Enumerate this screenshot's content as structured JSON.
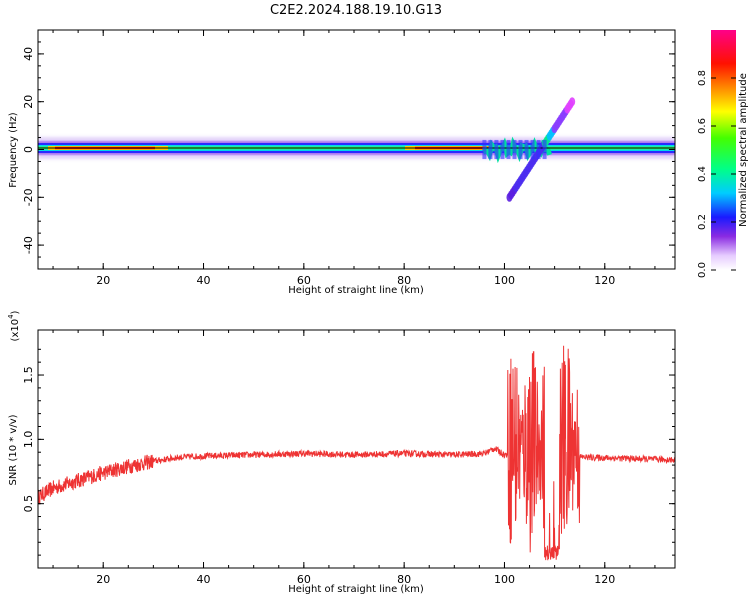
{
  "figure": {
    "title": "C2E2.2024.188.19.10.G13"
  },
  "chart_data": [
    {
      "type": "heatmap",
      "xlabel": "Height of straight line (km)",
      "ylabel": "Frequency (Hz)",
      "xlim": [
        7,
        134
      ],
      "ylim": [
        -50,
        50
      ],
      "xticks": [
        20,
        40,
        60,
        80,
        100,
        120
      ],
      "yticks": [
        40,
        20,
        0,
        -20,
        -40
      ],
      "xtick_labels": [
        "20",
        "40",
        "60",
        "80",
        "100",
        "120"
      ],
      "ytick_labels": [
        "40",
        "20",
        "0",
        "-20",
        "-40"
      ],
      "colorbar": {
        "label": "Normalized spectral amplitude",
        "range": [
          0,
          1
        ],
        "ticks": [
          0.0,
          0.2,
          0.4,
          0.6,
          0.8
        ],
        "tick_labels": [
          "0.0",
          "0.2",
          "0.4",
          "0.6",
          "0.8"
        ],
        "colormap": "rainbow (white, violet, blue, cyan, green, yellow, red, magenta)"
      },
      "features": [
        {
          "name": "carrier",
          "x_range": [
            7,
            134
          ],
          "frequency": 0,
          "amplitude_profile": "high (red) 10-30 km and 82-97 km, cyan/green elsewhere"
        },
        {
          "name": "doppler-streak",
          "x_range": [
            101,
            113.5
          ],
          "frequency_range": [
            -20,
            20
          ],
          "amplitude_profile": "blue at low end to magenta at top"
        },
        {
          "name": "disturbed-carrier",
          "x_range": [
            96,
            109
          ],
          "frequency_range": [
            -3,
            3
          ]
        }
      ]
    },
    {
      "type": "line",
      "xlabel": "Height of straight line (km)",
      "ylabel": "SNR (10 * v/v)",
      "yscale_label": "(x10",
      "yscale_exp": "4",
      "xlim": [
        7,
        134
      ],
      "ylim": [
        0.0,
        1.85
      ],
      "xticks": [
        20,
        40,
        60,
        80,
        100,
        120
      ],
      "yticks": [
        0.5,
        1.0,
        1.5
      ],
      "xtick_labels": [
        "20",
        "40",
        "60",
        "80",
        "100",
        "120"
      ],
      "ytick_labels": [
        "0.5",
        "1.0",
        "1.5"
      ],
      "series_color": "#ee3333",
      "trend": {
        "x": [
          7,
          10,
          15,
          20,
          25,
          30,
          35,
          40,
          50,
          60,
          70,
          80,
          90,
          96,
          98,
          100,
          134
        ],
        "y": [
          0.55,
          0.62,
          0.68,
          0.74,
          0.79,
          0.83,
          0.86,
          0.87,
          0.88,
          0.89,
          0.88,
          0.89,
          0.88,
          0.89,
          0.93,
          0.88,
          0.84
        ]
      },
      "turbulent_region": {
        "x_range": [
          100.5,
          115
        ],
        "envelope_max": 1.82,
        "envelope_min": 0.05,
        "dip": {
          "x_range": [
            108,
            111
          ],
          "y": 0.12
        }
      }
    }
  ]
}
